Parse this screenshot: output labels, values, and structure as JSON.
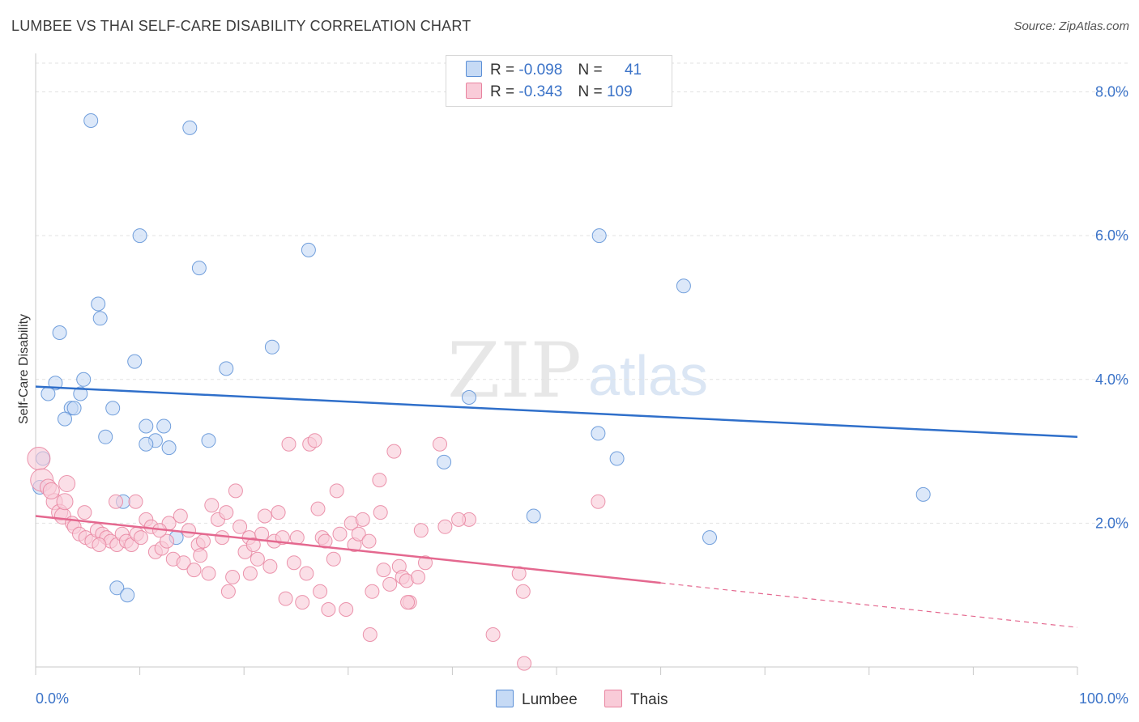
{
  "header": {
    "title": "LUMBEE VS THAI SELF-CARE DISABILITY CORRELATION CHART",
    "source": "Source: ZipAtlas.com"
  },
  "watermark": {
    "zip": "ZIP",
    "atlas": "atlas"
  },
  "legend": {
    "rows": [
      {
        "r_label": "R =",
        "r_value": "-0.098",
        "n_label": "N =",
        "n_value": "41",
        "color": "#5b8fd6",
        "fill": "#c6daf5"
      },
      {
        "r_label": "R =",
        "r_value": "-0.343",
        "n_label": "N =",
        "n_value": "109",
        "color": "#e8839f",
        "fill": "#f9cbd8"
      }
    ]
  },
  "bottom_legend": [
    "Lumbee",
    "Thais"
  ],
  "chart_data": {
    "type": "scatter",
    "title": "LUMBEE VS THAI SELF-CARE DISABILITY CORRELATION CHART",
    "xlabel": "",
    "ylabel": "Self-Care Disability",
    "xlim": [
      0,
      100
    ],
    "ylim": [
      0,
      8.4
    ],
    "x_tick_labels": [
      "0.0%",
      "100.0%"
    ],
    "y_ticks": [
      2,
      4,
      6,
      8
    ],
    "y_tick_labels": [
      "2.0%",
      "4.0%",
      "6.0%",
      "8.0%"
    ],
    "grid": "horizontal dashed",
    "legend_position": "top-center",
    "series": [
      {
        "name": "Lumbee",
        "color": "#5b8fd6",
        "fill": "#c6daf5",
        "trend": {
          "x": [
            0,
            100
          ],
          "y": [
            3.9,
            3.2
          ],
          "solid_until": 100
        },
        "points": [
          [
            5.3,
            7.6
          ],
          [
            14.8,
            7.5
          ],
          [
            10,
            6
          ],
          [
            26.2,
            5.8
          ],
          [
            54.1,
            6
          ],
          [
            15.7,
            5.55
          ],
          [
            62.2,
            5.3
          ],
          [
            6,
            5.05
          ],
          [
            6.2,
            4.85
          ],
          [
            2.3,
            4.65
          ],
          [
            9.5,
            4.25
          ],
          [
            22.7,
            4.45
          ],
          [
            18.3,
            4.15
          ],
          [
            1.9,
            3.95
          ],
          [
            4.6,
            4
          ],
          [
            1.2,
            3.8
          ],
          [
            4.3,
            3.8
          ],
          [
            41.6,
            3.75
          ],
          [
            3.4,
            3.6
          ],
          [
            3.7,
            3.6
          ],
          [
            7.4,
            3.6
          ],
          [
            2.8,
            3.45
          ],
          [
            10.6,
            3.35
          ],
          [
            12.3,
            3.35
          ],
          [
            6.7,
            3.2
          ],
          [
            11.5,
            3.15
          ],
          [
            10.6,
            3.1
          ],
          [
            12.8,
            3.05
          ],
          [
            16.6,
            3.15
          ],
          [
            54,
            3.25
          ],
          [
            0.7,
            2.9
          ],
          [
            39.2,
            2.85
          ],
          [
            55.8,
            2.9
          ],
          [
            0.4,
            2.5
          ],
          [
            8.4,
            2.3
          ],
          [
            47.8,
            2.1
          ],
          [
            85.2,
            2.4
          ],
          [
            64.7,
            1.8
          ],
          [
            13.5,
            1.8
          ],
          [
            7.8,
            1.1
          ],
          [
            8.8,
            1
          ]
        ]
      },
      {
        "name": "Thais",
        "color": "#e8839f",
        "fill": "#f9cbd8",
        "trend": {
          "x": [
            0,
            100
          ],
          "y": [
            2.1,
            0.55
          ],
          "solid_until": 60
        },
        "points": [
          [
            0.3,
            2.9
          ],
          [
            0.6,
            2.6
          ],
          [
            1.2,
            2.5
          ],
          [
            3,
            2.55
          ],
          [
            1.8,
            2.3
          ],
          [
            1.5,
            2.45
          ],
          [
            2.3,
            2.15
          ],
          [
            2.6,
            2.1
          ],
          [
            3.5,
            2
          ],
          [
            4.7,
            2.15
          ],
          [
            3.7,
            1.95
          ],
          [
            4.2,
            1.85
          ],
          [
            4.8,
            1.8
          ],
          [
            5.4,
            1.75
          ],
          [
            5.9,
            1.9
          ],
          [
            6.4,
            1.85
          ],
          [
            6.8,
            1.8
          ],
          [
            7.2,
            1.75
          ],
          [
            7.8,
            1.7
          ],
          [
            8.3,
            1.85
          ],
          [
            8.7,
            1.75
          ],
          [
            9.2,
            1.7
          ],
          [
            9.7,
            1.85
          ],
          [
            10.1,
            1.8
          ],
          [
            9.6,
            2.3
          ],
          [
            7.7,
            2.3
          ],
          [
            10.6,
            2.05
          ],
          [
            11.1,
            1.95
          ],
          [
            11.5,
            1.6
          ],
          [
            12.1,
            1.65
          ],
          [
            12.6,
            1.75
          ],
          [
            12.8,
            2
          ],
          [
            13.2,
            1.5
          ],
          [
            13.9,
            2.1
          ],
          [
            14.2,
            1.45
          ],
          [
            14.7,
            1.9
          ],
          [
            15.2,
            1.35
          ],
          [
            15.6,
            1.7
          ],
          [
            16.1,
            1.75
          ],
          [
            16.6,
            1.3
          ],
          [
            16.9,
            2.25
          ],
          [
            17.5,
            2.05
          ],
          [
            17.9,
            1.8
          ],
          [
            18.3,
            2.15
          ],
          [
            18.5,
            1.05
          ],
          [
            18.9,
            1.25
          ],
          [
            19.2,
            2.45
          ],
          [
            19.6,
            1.95
          ],
          [
            20.1,
            1.6
          ],
          [
            20.5,
            1.8
          ],
          [
            20.9,
            1.7
          ],
          [
            21.3,
            1.5
          ],
          [
            21.7,
            1.85
          ],
          [
            22,
            2.1
          ],
          [
            22.5,
            1.4
          ],
          [
            22.9,
            1.75
          ],
          [
            23.3,
            2.15
          ],
          [
            23.7,
            1.8
          ],
          [
            24,
            0.95
          ],
          [
            24.3,
            3.1
          ],
          [
            24.8,
            1.45
          ],
          [
            25.1,
            1.8
          ],
          [
            25.6,
            0.9
          ],
          [
            26,
            1.3
          ],
          [
            26.3,
            3.1
          ],
          [
            26.8,
            3.15
          ],
          [
            27.1,
            2.2
          ],
          [
            27.5,
            1.8
          ],
          [
            27.8,
            1.75
          ],
          [
            28.1,
            0.8
          ],
          [
            28.6,
            1.5
          ],
          [
            28.9,
            2.45
          ],
          [
            29.2,
            1.85
          ],
          [
            29.8,
            0.8
          ],
          [
            30.3,
            2
          ],
          [
            30.6,
            1.7
          ],
          [
            31,
            1.85
          ],
          [
            31.4,
            2.05
          ],
          [
            32,
            1.75
          ],
          [
            32.3,
            1.05
          ],
          [
            33.1,
            2.15
          ],
          [
            33,
            2.6
          ],
          [
            34,
            1.15
          ],
          [
            34.4,
            3
          ],
          [
            34.9,
            1.4
          ],
          [
            35.2,
            1.25
          ],
          [
            35.6,
            1.2
          ],
          [
            35.9,
            0.9
          ],
          [
            36.7,
            1.25
          ],
          [
            37.4,
            1.45
          ],
          [
            37,
            1.9
          ],
          [
            38.8,
            3.1
          ],
          [
            39.3,
            1.95
          ],
          [
            41.6,
            2.05
          ],
          [
            43.9,
            0.45
          ],
          [
            46.4,
            1.3
          ],
          [
            46.8,
            1.05
          ],
          [
            54,
            2.3
          ],
          [
            32.1,
            0.45
          ],
          [
            35.7,
            0.9
          ],
          [
            46.9,
            0.05
          ],
          [
            40.6,
            2.05
          ],
          [
            33.4,
            1.35
          ],
          [
            2.8,
            2.3
          ],
          [
            11.9,
            1.9
          ],
          [
            6.1,
            1.7
          ],
          [
            20.6,
            1.3
          ],
          [
            15.8,
            1.55
          ],
          [
            27.3,
            1.05
          ]
        ]
      }
    ]
  }
}
